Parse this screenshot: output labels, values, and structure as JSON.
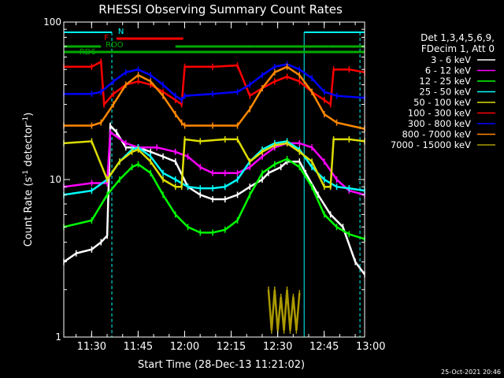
{
  "chart_data": {
    "type": "line",
    "title": "RHESSI Observing Summary Count Rates",
    "xlabel": "Start Time (28-Dec-13 11:21:02)",
    "ylabel_main": "Count Rate (s",
    "ylabel_sup1": "-1",
    "ylabel_mid": " detector",
    "ylabel_sup2": "-1",
    "ylabel_end": ")",
    "y_scale": "log",
    "ylim": [
      1,
      100
    ],
    "xlim_minutes": [
      0,
      97
    ],
    "x_ticks": [
      {
        "label": "11:30",
        "minutes": 8.97
      },
      {
        "label": "11:45",
        "minutes": 23.97
      },
      {
        "label": "12:00",
        "minutes": 38.97
      },
      {
        "label": "12:15",
        "minutes": 53.97
      },
      {
        "label": "12:30",
        "minutes": 68.97
      },
      {
        "label": "12:45",
        "minutes": 83.97
      },
      {
        "label": "13:00",
        "minutes": 98.97
      }
    ],
    "y_ticks": [
      {
        "label": "1",
        "value": 1
      },
      {
        "label": "10",
        "value": 10
      },
      {
        "label": "100",
        "value": 100
      }
    ],
    "legend_header": [
      "Det 1,3,4,5,6,9,",
      "FDecim 1, Att 0"
    ],
    "legend_placement": "right",
    "series": [
      {
        "name": "3 - 6 keV",
        "color": "#ffffff",
        "points": [
          [
            0,
            3
          ],
          [
            4,
            3.4
          ],
          [
            9,
            3.6
          ],
          [
            12,
            4
          ],
          [
            14,
            4.4
          ],
          [
            15,
            22
          ],
          [
            17,
            20
          ],
          [
            20,
            16
          ],
          [
            24,
            16
          ],
          [
            28,
            15
          ],
          [
            32,
            14
          ],
          [
            36,
            13
          ],
          [
            40,
            9
          ],
          [
            44,
            8
          ],
          [
            48,
            7.5
          ],
          [
            52,
            7.5
          ],
          [
            56,
            8
          ],
          [
            60,
            9
          ],
          [
            64,
            10
          ],
          [
            66,
            11
          ],
          [
            70,
            12
          ],
          [
            72,
            13
          ],
          [
            76,
            13
          ],
          [
            78,
            11
          ],
          [
            82,
            8
          ],
          [
            86,
            6
          ],
          [
            90,
            5
          ],
          [
            94,
            3
          ],
          [
            97,
            2.5
          ]
        ]
      },
      {
        "name": "6 - 12 keV",
        "color": "#ff00ff",
        "points": [
          [
            0,
            9
          ],
          [
            9,
            9.5
          ],
          [
            14,
            9.5
          ],
          [
            15,
            20
          ],
          [
            20,
            17
          ],
          [
            24,
            16
          ],
          [
            30,
            16
          ],
          [
            36,
            15
          ],
          [
            40,
            14
          ],
          [
            44,
            12
          ],
          [
            48,
            11
          ],
          [
            52,
            11
          ],
          [
            56,
            11
          ],
          [
            60,
            12
          ],
          [
            64,
            14
          ],
          [
            68,
            16
          ],
          [
            72,
            17
          ],
          [
            76,
            17
          ],
          [
            80,
            16
          ],
          [
            84,
            13
          ],
          [
            88,
            10
          ],
          [
            92,
            8.5
          ],
          [
            97,
            8
          ]
        ]
      },
      {
        "name": "12 - 25 keV",
        "color": "#00ff00",
        "points": [
          [
            0,
            5
          ],
          [
            9,
            5.5
          ],
          [
            14,
            8
          ],
          [
            18,
            10
          ],
          [
            22,
            12
          ],
          [
            24,
            12.5
          ],
          [
            28,
            11
          ],
          [
            32,
            8
          ],
          [
            36,
            6
          ],
          [
            40,
            5
          ],
          [
            44,
            4.6
          ],
          [
            48,
            4.6
          ],
          [
            52,
            4.8
          ],
          [
            56,
            5.5
          ],
          [
            60,
            8
          ],
          [
            64,
            11
          ],
          [
            68,
            12.5
          ],
          [
            72,
            13.5
          ],
          [
            76,
            12
          ],
          [
            80,
            9
          ],
          [
            84,
            6
          ],
          [
            88,
            5
          ],
          [
            92,
            4.5
          ],
          [
            97,
            4.2
          ]
        ]
      },
      {
        "name": "25 - 50 keV",
        "color": "#00ffff",
        "points": [
          [
            0,
            8
          ],
          [
            9,
            8.5
          ],
          [
            14,
            10
          ],
          [
            18,
            13
          ],
          [
            22,
            15.5
          ],
          [
            24,
            16
          ],
          [
            28,
            14
          ],
          [
            32,
            11
          ],
          [
            36,
            10
          ],
          [
            40,
            9
          ],
          [
            44,
            8.8
          ],
          [
            48,
            8.8
          ],
          [
            52,
            9
          ],
          [
            56,
            10
          ],
          [
            60,
            13
          ],
          [
            64,
            15.5
          ],
          [
            68,
            17
          ],
          [
            72,
            17.5
          ],
          [
            76,
            15.5
          ],
          [
            80,
            12
          ],
          [
            84,
            10
          ],
          [
            88,
            9
          ],
          [
            92,
            8.8
          ],
          [
            97,
            8.5
          ]
        ]
      },
      {
        "name": "50 - 100 keV",
        "color": "#dddd00",
        "points": [
          [
            0,
            17
          ],
          [
            9,
            17.5
          ],
          [
            14,
            10
          ],
          [
            18,
            13
          ],
          [
            22,
            15
          ],
          [
            24,
            15.5
          ],
          [
            28,
            13
          ],
          [
            32,
            10
          ],
          [
            36,
            9
          ],
          [
            38,
            9
          ],
          [
            39,
            18
          ],
          [
            44,
            17.5
          ],
          [
            52,
            18
          ],
          [
            56,
            18
          ],
          [
            60,
            13
          ],
          [
            64,
            15
          ],
          [
            68,
            16.5
          ],
          [
            72,
            17
          ],
          [
            76,
            15
          ],
          [
            80,
            13
          ],
          [
            84,
            9
          ],
          [
            86,
            9
          ],
          [
            87,
            18
          ],
          [
            92,
            18
          ],
          [
            97,
            17.5
          ]
        ]
      },
      {
        "name": "100 - 300 keV",
        "color": "#ff0000",
        "points": [
          [
            0,
            52
          ],
          [
            9,
            52
          ],
          [
            12,
            56
          ],
          [
            13,
            30
          ],
          [
            16,
            35
          ],
          [
            20,
            40
          ],
          [
            24,
            42
          ],
          [
            28,
            40
          ],
          [
            32,
            36
          ],
          [
            36,
            32
          ],
          [
            38,
            30
          ],
          [
            39,
            52
          ],
          [
            48,
            52
          ],
          [
            56,
            53
          ],
          [
            60,
            34
          ],
          [
            64,
            38
          ],
          [
            68,
            42
          ],
          [
            72,
            45
          ],
          [
            76,
            42
          ],
          [
            80,
            36
          ],
          [
            84,
            32
          ],
          [
            86,
            30
          ],
          [
            87,
            50
          ],
          [
            92,
            50
          ],
          [
            97,
            48
          ]
        ]
      },
      {
        "name": "300 - 800 keV",
        "color": "#0000ff",
        "points": [
          [
            0,
            35
          ],
          [
            9,
            35
          ],
          [
            12,
            36
          ],
          [
            16,
            42
          ],
          [
            20,
            48
          ],
          [
            24,
            50
          ],
          [
            28,
            46
          ],
          [
            32,
            40
          ],
          [
            36,
            34
          ],
          [
            38,
            32
          ],
          [
            39,
            34
          ],
          [
            48,
            35
          ],
          [
            56,
            36
          ],
          [
            60,
            40
          ],
          [
            64,
            46
          ],
          [
            68,
            52
          ],
          [
            72,
            54
          ],
          [
            76,
            50
          ],
          [
            80,
            44
          ],
          [
            84,
            36
          ],
          [
            88,
            34
          ],
          [
            97,
            33
          ]
        ]
      },
      {
        "name": "800 - 7000 keV",
        "color": "#ff8800",
        "points": [
          [
            0,
            22
          ],
          [
            9,
            22
          ],
          [
            12,
            23
          ],
          [
            16,
            30
          ],
          [
            20,
            40
          ],
          [
            24,
            46
          ],
          [
            28,
            42
          ],
          [
            32,
            34
          ],
          [
            36,
            26
          ],
          [
            38,
            23
          ],
          [
            39,
            22
          ],
          [
            48,
            22
          ],
          [
            56,
            22
          ],
          [
            60,
            28
          ],
          [
            64,
            38
          ],
          [
            68,
            48
          ],
          [
            72,
            52
          ],
          [
            76,
            46
          ],
          [
            80,
            36
          ],
          [
            84,
            26
          ],
          [
            88,
            23
          ],
          [
            97,
            21
          ]
        ]
      },
      {
        "name": "7000 - 15000 keV",
        "color": "#aa9900",
        "points": [
          [
            66,
            2
          ],
          [
            67,
            1.1
          ],
          [
            68,
            2
          ],
          [
            69,
            1.1
          ],
          [
            70,
            1.8
          ],
          [
            71,
            1.1
          ],
          [
            72,
            2
          ],
          [
            73,
            1.1
          ],
          [
            74,
            1.8
          ],
          [
            75,
            1.1
          ],
          [
            76,
            1.9
          ]
        ]
      }
    ],
    "flags": [
      {
        "label": "N",
        "color": "#00ffff"
      },
      {
        "label": "F",
        "color": "#ff0000"
      },
      {
        "label": "RDO",
        "color": "#00aa00"
      },
      {
        "label": "RD6",
        "color": "#00aa00"
      }
    ],
    "footer_date": "25-Oct-2021 20:46"
  }
}
